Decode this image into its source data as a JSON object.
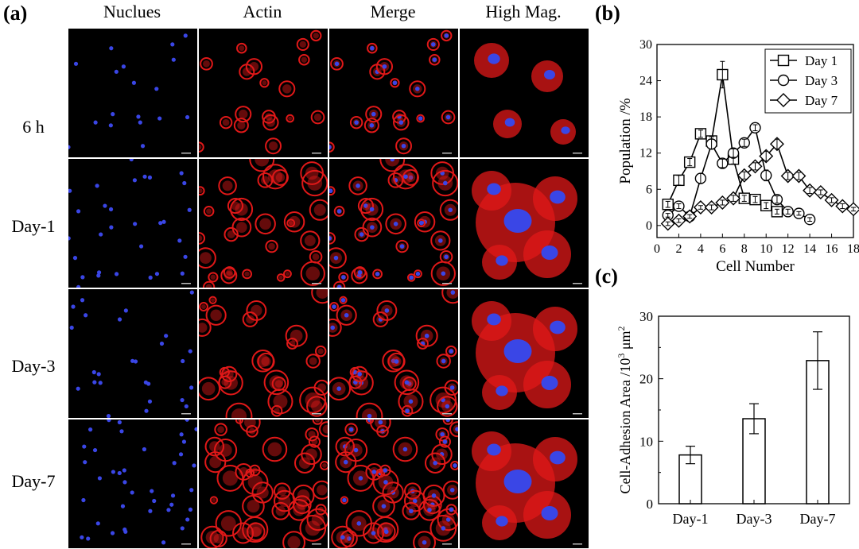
{
  "panel_a": {
    "label": "(a)",
    "columns": [
      "Nuclues",
      "Actin",
      "Merge",
      "High Mag."
    ],
    "rows": [
      "6 h",
      "Day-1",
      "Day-3",
      "Day-7"
    ],
    "colors": {
      "nucleus": "#3a46e6",
      "actin": "#e01818",
      "background": "#000000"
    }
  },
  "panel_b": {
    "label": "(b)"
  },
  "panel_c": {
    "label": "(c)"
  },
  "chart_data": [
    {
      "type": "line",
      "xlabel": "Cell Number",
      "ylabel": "Population /%",
      "xlim": [
        0,
        18
      ],
      "ylim": [
        -2,
        30
      ],
      "xticks": [
        0,
        2,
        4,
        6,
        8,
        10,
        12,
        14,
        16,
        18
      ],
      "yticks": [
        0,
        6,
        12,
        18,
        24,
        30
      ],
      "grid": false,
      "legend_position": "top-right",
      "series": [
        {
          "name": "Day 1",
          "marker": "square",
          "x": [
            1,
            2,
            3,
            4,
            5,
            6,
            7,
            8,
            9,
            10,
            11
          ],
          "y": [
            3.5,
            7.5,
            10.5,
            15.2,
            14.0,
            25.0,
            11.0,
            4.5,
            4.3,
            3.3,
            2.3
          ],
          "err": [
            0.5,
            0.8,
            0.6,
            0.6,
            0.7,
            2.2,
            0.8,
            0.5,
            0.5,
            0.5,
            0.4
          ]
        },
        {
          "name": "Day 3",
          "marker": "circle",
          "x": [
            1,
            2,
            3,
            4,
            5,
            6,
            7,
            8,
            9,
            10,
            11,
            12,
            13,
            14
          ],
          "y": [
            1.7,
            3.2,
            1.5,
            7.8,
            13.5,
            10.3,
            12.0,
            13.7,
            16.2,
            8.3,
            4.3,
            2.3,
            2.0,
            1.0
          ],
          "err": [
            0.3,
            0.4,
            0.3,
            0.8,
            0.8,
            0.7,
            0.7,
            0.6,
            0.5,
            0.9,
            0.6,
            0.4,
            0.3,
            0.3
          ]
        },
        {
          "name": "Day 7",
          "marker": "diamond",
          "x": [
            1,
            2,
            3,
            4,
            5,
            6,
            7,
            8,
            9,
            10,
            11,
            12,
            13,
            14,
            15,
            16,
            17,
            18
          ],
          "y": [
            0.3,
            0.8,
            1.5,
            3.0,
            3.0,
            3.8,
            4.5,
            8.3,
            9.8,
            11.5,
            13.5,
            8.2,
            8.2,
            5.8,
            5.5,
            4.2,
            3.2,
            2.7
          ],
          "err": [
            0.3,
            0.3,
            0.3,
            0.3,
            0.4,
            0.4,
            0.5,
            0.6,
            0.6,
            0.8,
            0.8,
            0.6,
            0.6,
            0.5,
            0.4,
            0.4,
            0.4,
            0.3
          ]
        }
      ]
    },
    {
      "type": "bar",
      "categories": [
        "Day-1",
        "Day-3",
        "Day-7"
      ],
      "values": [
        7.8,
        13.6,
        22.9
      ],
      "errors": [
        1.4,
        2.4,
        4.6
      ],
      "xlabel": "",
      "ylabel_parts": [
        "Cell-Adhesion Area /10",
        "3",
        " μm",
        "2"
      ],
      "ylim": [
        0,
        30
      ],
      "yticks": [
        0,
        10,
        20,
        30
      ],
      "grid": false
    }
  ]
}
